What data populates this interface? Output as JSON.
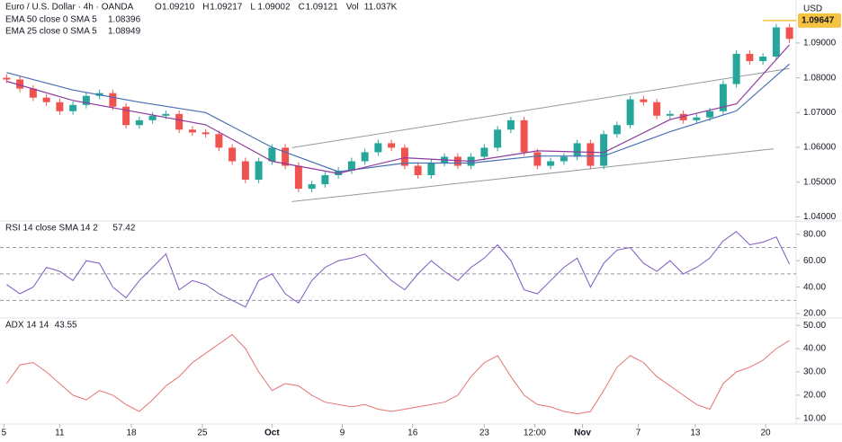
{
  "chart_data": [
    {
      "type": "candlestick",
      "title": "Euro / U.S. Dollar · 4h · OANDA",
      "quote": [
        {
          "label": "O",
          "value": "1.09210"
        },
        {
          "label": "H",
          "value": "1.09217"
        },
        {
          "label": "L",
          "value": "1.09002"
        },
        {
          "label": "C",
          "value": "1.09121"
        },
        {
          "label": "Vol",
          "value": "11.037K"
        }
      ],
      "currency": "USD",
      "up_color": "#26a69a",
      "down_color": "#ef5350",
      "open": [
        1.08,
        1.0795,
        1.0769,
        1.0743,
        1.073,
        1.0704,
        1.0722,
        1.0748,
        1.0756,
        1.0717,
        1.0664,
        1.0678,
        1.0691,
        1.0696,
        1.0651,
        1.0643,
        1.0638,
        1.0599,
        1.056,
        1.0507,
        1.056,
        1.0599,
        1.0547,
        1.0481,
        1.0494,
        1.052,
        1.0533,
        1.056,
        1.0586,
        1.0612,
        1.0599,
        1.0547,
        1.052,
        1.0555,
        1.0573,
        1.0547,
        1.0573,
        1.0599,
        1.0651,
        1.0678,
        1.0586,
        1.0547,
        1.056,
        1.0573,
        1.0612,
        1.0547,
        1.0638,
        1.0664,
        1.0738,
        1.073,
        1.0691,
        1.0696,
        1.0678,
        1.0686,
        1.0704,
        1.0782,
        1.0869,
        1.0848,
        1.0861,
        1.0945
      ],
      "high": [
        1.081,
        1.0805,
        1.0779,
        1.0753,
        1.074,
        1.0732,
        1.0758,
        1.0766,
        1.0766,
        1.0727,
        1.0688,
        1.0701,
        1.0706,
        1.0706,
        1.0661,
        1.0653,
        1.0648,
        1.0609,
        1.057,
        1.057,
        1.0609,
        1.0609,
        1.0557,
        1.0504,
        1.053,
        1.0543,
        1.057,
        1.0596,
        1.0622,
        1.0622,
        1.0609,
        1.0557,
        1.0565,
        1.0583,
        1.0583,
        1.0583,
        1.0609,
        1.0661,
        1.0688,
        1.0688,
        1.0596,
        1.057,
        1.0583,
        1.0622,
        1.0622,
        1.0648,
        1.0674,
        1.0748,
        1.0748,
        1.074,
        1.0706,
        1.0706,
        1.0696,
        1.0714,
        1.0792,
        1.0879,
        1.0879,
        1.0871,
        1.0955,
        1.0955
      ],
      "low": [
        1.0785,
        1.0759,
        1.0733,
        1.072,
        1.0694,
        1.0694,
        1.0712,
        1.0738,
        1.0707,
        1.0654,
        1.0654,
        1.0668,
        1.0681,
        1.0641,
        1.0633,
        1.0628,
        1.0589,
        1.055,
        1.0497,
        1.0497,
        1.055,
        1.0537,
        1.0471,
        1.0471,
        1.0484,
        1.051,
        1.0523,
        1.055,
        1.0576,
        1.0589,
        1.0537,
        1.051,
        1.051,
        1.0545,
        1.0537,
        1.0537,
        1.0563,
        1.0589,
        1.0641,
        1.0576,
        1.0537,
        1.0537,
        1.055,
        1.0563,
        1.0537,
        1.0537,
        1.0628,
        1.0654,
        1.072,
        1.0681,
        1.0681,
        1.0668,
        1.0668,
        1.0676,
        1.0694,
        1.0772,
        1.0838,
        1.0838,
        1.0851,
        1.09002
      ],
      "close": [
        1.0795,
        1.0769,
        1.0743,
        1.073,
        1.0704,
        1.0722,
        1.0748,
        1.0756,
        1.0717,
        1.0664,
        1.0678,
        1.0691,
        1.0696,
        1.0651,
        1.0643,
        1.0638,
        1.0599,
        1.056,
        1.0507,
        1.056,
        1.0599,
        1.0547,
        1.0481,
        1.0494,
        1.052,
        1.0533,
        1.056,
        1.0586,
        1.0612,
        1.0599,
        1.0547,
        1.052,
        1.0555,
        1.0573,
        1.0547,
        1.0573,
        1.0599,
        1.0651,
        1.0678,
        1.0586,
        1.0547,
        1.056,
        1.0573,
        1.0612,
        1.0547,
        1.0638,
        1.0664,
        1.0738,
        1.073,
        1.0691,
        1.0696,
        1.0678,
        1.0686,
        1.0704,
        1.0782,
        1.0869,
        1.0848,
        1.0861,
        1.0945,
        1.09121
      ],
      "series": [
        {
          "name": "EMA 50 close 0 SMA 5",
          "value_label": "1.08396",
          "color": "#4a6fb5",
          "x": [
            0,
            5,
            10,
            15,
            20,
            25,
            30,
            35,
            40,
            45,
            50,
            55,
            59
          ],
          "values": [
            1.0815,
            1.0765,
            1.073,
            1.07,
            1.06,
            1.053,
            1.0555,
            1.0555,
            1.0575,
            1.0575,
            1.0645,
            1.0705,
            1.08396
          ]
        },
        {
          "name": "EMA 25 close 0 SMA 5",
          "value_label": "1.08949",
          "color": "#8e3b9e",
          "x": [
            0,
            5,
            10,
            15,
            20,
            25,
            30,
            35,
            40,
            45,
            50,
            55,
            59
          ],
          "values": [
            1.079,
            1.0735,
            1.07,
            1.0665,
            1.056,
            1.0525,
            1.057,
            1.056,
            1.059,
            1.0585,
            1.068,
            1.0725,
            1.08949
          ]
        }
      ],
      "trendlines": [
        {
          "x": [
            21.5,
            59
          ],
          "values": [
            1.0599,
            1.0827
          ]
        },
        {
          "x": [
            21.5,
            57.8
          ],
          "values": [
            1.0444,
            1.0596
          ]
        }
      ],
      "price_marker": {
        "value": 1.09647,
        "label": "1.09647",
        "color": "#f5c242"
      },
      "xlim": [
        -0.5,
        59.5
      ],
      "ylim": [
        1.0396,
        1.0985
      ],
      "yticks": [
        {
          "value": 1.04,
          "label": "1.04000"
        },
        {
          "value": 1.05,
          "label": "1.05000"
        },
        {
          "value": 1.06,
          "label": "1.06000"
        },
        {
          "value": 1.07,
          "label": "1.07000"
        },
        {
          "value": 1.08,
          "label": "1.08000"
        },
        {
          "value": 1.09,
          "label": "1.09000"
        }
      ]
    },
    {
      "type": "line",
      "title": "RSI 14 close SMA 14 2",
      "value_label": "57.42",
      "color": "#7e57c2",
      "values": [
        42,
        35,
        40,
        55,
        52,
        45,
        60,
        58,
        40,
        32,
        45,
        55,
        65,
        38,
        45,
        42,
        35,
        30,
        25,
        45,
        50,
        35,
        28,
        45,
        55,
        60,
        62,
        65,
        55,
        45,
        38,
        50,
        60,
        52,
        45,
        55,
        62,
        72,
        60,
        38,
        35,
        45,
        55,
        62,
        40,
        58,
        68,
        70,
        58,
        52,
        60,
        50,
        55,
        62,
        75,
        82,
        72,
        74,
        78,
        57.42
      ],
      "bands": [
        30,
        50,
        70
      ],
      "xlim": [
        -0.5,
        59.5
      ],
      "ylim": [
        18,
        88
      ],
      "yticks": [
        {
          "value": 20,
          "label": "20.00"
        },
        {
          "value": 40,
          "label": "40.00"
        },
        {
          "value": 60,
          "label": "60.00"
        },
        {
          "value": 80,
          "label": "80.00"
        }
      ]
    },
    {
      "type": "line",
      "title": "ADX 14 14",
      "value_label": "43.55",
      "color": "#e57373",
      "values": [
        25,
        33,
        34,
        30,
        25,
        20,
        18,
        22,
        20,
        16,
        13,
        18,
        24,
        28,
        34,
        38,
        42,
        46,
        40,
        30,
        22,
        25,
        24,
        20,
        17,
        16,
        15,
        16,
        14,
        13,
        14,
        15,
        16,
        17,
        20,
        28,
        34,
        37,
        28,
        20,
        16,
        15,
        13,
        12,
        13,
        22,
        32,
        37,
        34,
        28,
        24,
        20,
        16,
        14,
        25,
        30,
        32,
        35,
        40,
        43.55
      ],
      "xlim": [
        -0.5,
        59.5
      ],
      "ylim": [
        8,
        52
      ],
      "yticks": [
        {
          "value": 10,
          "label": "10.00"
        },
        {
          "value": 20,
          "label": "20.00"
        },
        {
          "value": 30,
          "label": "30.00"
        },
        {
          "value": 40,
          "label": "40.00"
        },
        {
          "value": 50,
          "label": "50.00"
        }
      ],
      "xticks": [
        {
          "value": -0.2,
          "label": "5"
        },
        {
          "value": 4,
          "label": "11"
        },
        {
          "value": 9.4,
          "label": "18"
        },
        {
          "value": 14.75,
          "label": "25"
        },
        {
          "value": 20,
          "label": "Oct"
        },
        {
          "value": 25.3,
          "label": "9"
        },
        {
          "value": 30.6,
          "label": "16"
        },
        {
          "value": 36,
          "label": "23"
        },
        {
          "value": 39.8,
          "label": "12:00"
        },
        {
          "value": 43.4,
          "label": "Nov"
        },
        {
          "value": 47.6,
          "label": "7"
        },
        {
          "value": 51.9,
          "label": "13"
        },
        {
          "value": 57.2,
          "label": "20"
        }
      ]
    }
  ]
}
